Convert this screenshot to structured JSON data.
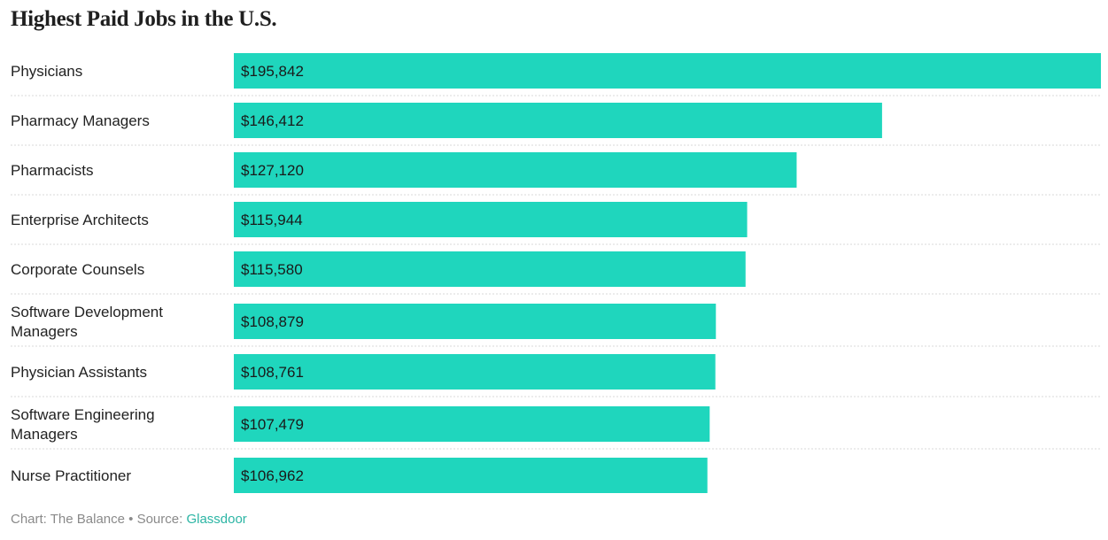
{
  "chart_data": {
    "type": "bar",
    "orientation": "horizontal",
    "title": "Highest Paid Jobs in the U.S.",
    "categories": [
      "Physicians",
      "Pharmacy Managers",
      "Pharmacists",
      "Enterprise Architects",
      "Corporate Counsels",
      "Software Development Managers",
      "Physician Assistants",
      "Software Engineering Managers",
      "Nurse Practitioner"
    ],
    "values": [
      195842,
      146412,
      127120,
      115944,
      115580,
      108879,
      108761,
      107479,
      106962
    ],
    "value_labels": [
      "$195,842",
      "$146,412",
      "$127,120",
      "$115,944",
      "$115,580",
      "$108,879",
      "$108,761",
      "$107,479",
      "$106,962"
    ],
    "xlim": [
      0,
      195842
    ],
    "grid": false,
    "bar_color": "#1fd6bd"
  },
  "footer": {
    "credit": "Chart: The Balance",
    "separator": " • ",
    "source_prefix": "Source: ",
    "source_link": "Glassdoor"
  },
  "colors": {
    "bar": "#1fd6bd",
    "link": "#2bb5a4",
    "divider": "#d9d9d9"
  }
}
